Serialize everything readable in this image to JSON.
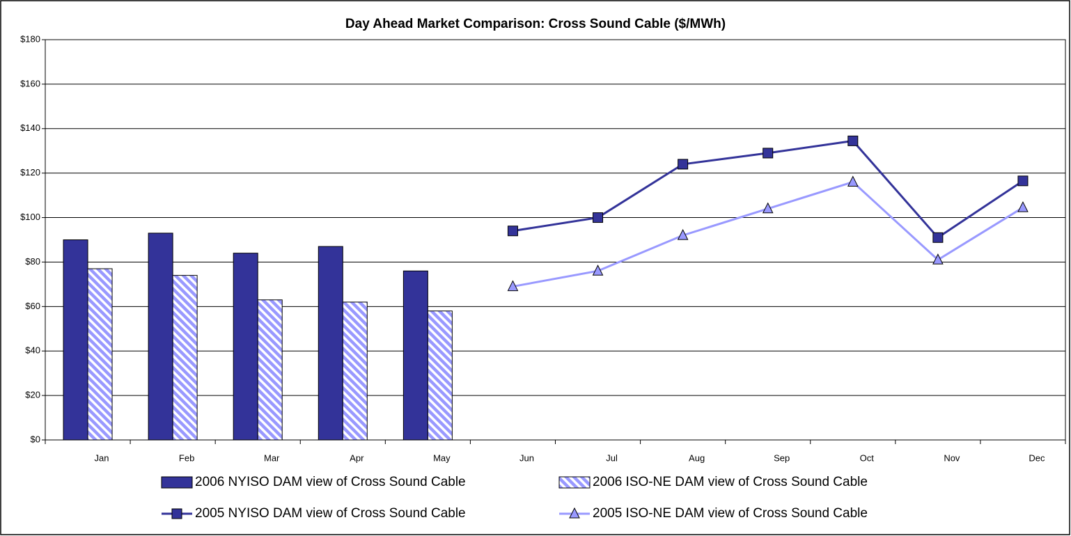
{
  "chart_data": {
    "type": "bar-line",
    "title": "Day Ahead Market Comparison: Cross Sound Cable ($/MWh)",
    "categories": [
      "Jan",
      "Feb",
      "Mar",
      "Apr",
      "May",
      "Jun",
      "Jul",
      "Aug",
      "Sep",
      "Oct",
      "Nov",
      "Dec"
    ],
    "series": [
      {
        "name": "2006 NYISO DAM view of Cross Sound Cable",
        "type": "bar",
        "color": "#333399",
        "values": [
          90,
          93,
          84,
          87,
          76,
          null,
          null,
          null,
          null,
          null,
          null,
          null
        ]
      },
      {
        "name": "2006 ISO-NE DAM view of Cross Sound Cable",
        "type": "bar",
        "color": "#9999ff",
        "pattern": "diagonal-stripes",
        "values": [
          77,
          74,
          63,
          62,
          58,
          null,
          null,
          null,
          null,
          null,
          null,
          null
        ]
      },
      {
        "name": "2005 NYISO DAM view of Cross Sound Cable",
        "type": "line",
        "color": "#333399",
        "marker": "square",
        "values": [
          null,
          null,
          null,
          null,
          null,
          94,
          100,
          124,
          129,
          134.5,
          91,
          116.5
        ]
      },
      {
        "name": "2005 ISO-NE DAM view of Cross Sound Cable",
        "type": "line",
        "color": "#9999ff",
        "marker": "triangle",
        "values": [
          null,
          null,
          null,
          null,
          null,
          69,
          76,
          92,
          104,
          116,
          81,
          104.5
        ]
      }
    ],
    "ylim": [
      0,
      180
    ],
    "yticks": [
      {
        "value": 0,
        "label": "$0"
      },
      {
        "value": 20,
        "label": "$20"
      },
      {
        "value": 40,
        "label": "$40"
      },
      {
        "value": 60,
        "label": "$60"
      },
      {
        "value": 80,
        "label": "$80"
      },
      {
        "value": 100,
        "label": "$100"
      },
      {
        "value": 120,
        "label": "$120"
      },
      {
        "value": 140,
        "label": "$140"
      },
      {
        "value": 160,
        "label": "$160"
      },
      {
        "value": 180,
        "label": "$180"
      }
    ],
    "grid": true,
    "legend": "bottom"
  }
}
